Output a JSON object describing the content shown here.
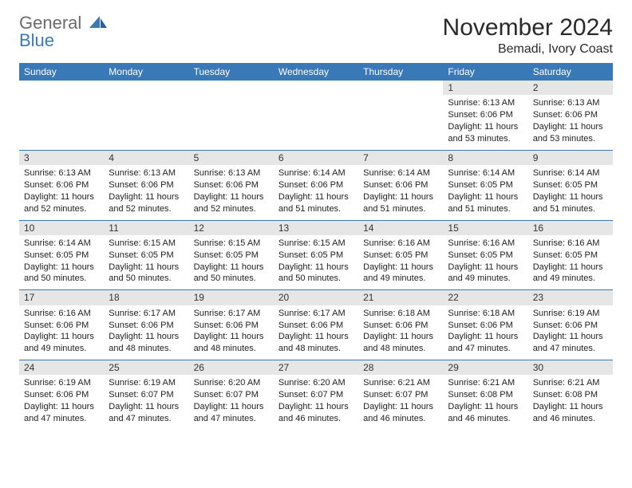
{
  "colors": {
    "header_bg": "#3a79b7",
    "header_text": "#ffffff",
    "daynum_bg": "#e6e6e6",
    "border": "#3a79b7",
    "logo_gray": "#6b6b6b",
    "logo_blue": "#3a79b7",
    "body_text": "#222222"
  },
  "logo": {
    "word1": "General",
    "word2": "Blue"
  },
  "title": "November 2024",
  "location": "Bemadi, Ivory Coast",
  "day_headers": [
    "Sunday",
    "Monday",
    "Tuesday",
    "Wednesday",
    "Thursday",
    "Friday",
    "Saturday"
  ],
  "weeks": [
    [
      null,
      null,
      null,
      null,
      null,
      {
        "n": "1",
        "sunrise": "Sunrise: 6:13 AM",
        "sunset": "Sunset: 6:06 PM",
        "daylight": "Daylight: 11 hours and 53 minutes."
      },
      {
        "n": "2",
        "sunrise": "Sunrise: 6:13 AM",
        "sunset": "Sunset: 6:06 PM",
        "daylight": "Daylight: 11 hours and 53 minutes."
      }
    ],
    [
      {
        "n": "3",
        "sunrise": "Sunrise: 6:13 AM",
        "sunset": "Sunset: 6:06 PM",
        "daylight": "Daylight: 11 hours and 52 minutes."
      },
      {
        "n": "4",
        "sunrise": "Sunrise: 6:13 AM",
        "sunset": "Sunset: 6:06 PM",
        "daylight": "Daylight: 11 hours and 52 minutes."
      },
      {
        "n": "5",
        "sunrise": "Sunrise: 6:13 AM",
        "sunset": "Sunset: 6:06 PM",
        "daylight": "Daylight: 11 hours and 52 minutes."
      },
      {
        "n": "6",
        "sunrise": "Sunrise: 6:14 AM",
        "sunset": "Sunset: 6:06 PM",
        "daylight": "Daylight: 11 hours and 51 minutes."
      },
      {
        "n": "7",
        "sunrise": "Sunrise: 6:14 AM",
        "sunset": "Sunset: 6:06 PM",
        "daylight": "Daylight: 11 hours and 51 minutes."
      },
      {
        "n": "8",
        "sunrise": "Sunrise: 6:14 AM",
        "sunset": "Sunset: 6:05 PM",
        "daylight": "Daylight: 11 hours and 51 minutes."
      },
      {
        "n": "9",
        "sunrise": "Sunrise: 6:14 AM",
        "sunset": "Sunset: 6:05 PM",
        "daylight": "Daylight: 11 hours and 51 minutes."
      }
    ],
    [
      {
        "n": "10",
        "sunrise": "Sunrise: 6:14 AM",
        "sunset": "Sunset: 6:05 PM",
        "daylight": "Daylight: 11 hours and 50 minutes."
      },
      {
        "n": "11",
        "sunrise": "Sunrise: 6:15 AM",
        "sunset": "Sunset: 6:05 PM",
        "daylight": "Daylight: 11 hours and 50 minutes."
      },
      {
        "n": "12",
        "sunrise": "Sunrise: 6:15 AM",
        "sunset": "Sunset: 6:05 PM",
        "daylight": "Daylight: 11 hours and 50 minutes."
      },
      {
        "n": "13",
        "sunrise": "Sunrise: 6:15 AM",
        "sunset": "Sunset: 6:05 PM",
        "daylight": "Daylight: 11 hours and 50 minutes."
      },
      {
        "n": "14",
        "sunrise": "Sunrise: 6:16 AM",
        "sunset": "Sunset: 6:05 PM",
        "daylight": "Daylight: 11 hours and 49 minutes."
      },
      {
        "n": "15",
        "sunrise": "Sunrise: 6:16 AM",
        "sunset": "Sunset: 6:05 PM",
        "daylight": "Daylight: 11 hours and 49 minutes."
      },
      {
        "n": "16",
        "sunrise": "Sunrise: 6:16 AM",
        "sunset": "Sunset: 6:05 PM",
        "daylight": "Daylight: 11 hours and 49 minutes."
      }
    ],
    [
      {
        "n": "17",
        "sunrise": "Sunrise: 6:16 AM",
        "sunset": "Sunset: 6:06 PM",
        "daylight": "Daylight: 11 hours and 49 minutes."
      },
      {
        "n": "18",
        "sunrise": "Sunrise: 6:17 AM",
        "sunset": "Sunset: 6:06 PM",
        "daylight": "Daylight: 11 hours and 48 minutes."
      },
      {
        "n": "19",
        "sunrise": "Sunrise: 6:17 AM",
        "sunset": "Sunset: 6:06 PM",
        "daylight": "Daylight: 11 hours and 48 minutes."
      },
      {
        "n": "20",
        "sunrise": "Sunrise: 6:17 AM",
        "sunset": "Sunset: 6:06 PM",
        "daylight": "Daylight: 11 hours and 48 minutes."
      },
      {
        "n": "21",
        "sunrise": "Sunrise: 6:18 AM",
        "sunset": "Sunset: 6:06 PM",
        "daylight": "Daylight: 11 hours and 48 minutes."
      },
      {
        "n": "22",
        "sunrise": "Sunrise: 6:18 AM",
        "sunset": "Sunset: 6:06 PM",
        "daylight": "Daylight: 11 hours and 47 minutes."
      },
      {
        "n": "23",
        "sunrise": "Sunrise: 6:19 AM",
        "sunset": "Sunset: 6:06 PM",
        "daylight": "Daylight: 11 hours and 47 minutes."
      }
    ],
    [
      {
        "n": "24",
        "sunrise": "Sunrise: 6:19 AM",
        "sunset": "Sunset: 6:06 PM",
        "daylight": "Daylight: 11 hours and 47 minutes."
      },
      {
        "n": "25",
        "sunrise": "Sunrise: 6:19 AM",
        "sunset": "Sunset: 6:07 PM",
        "daylight": "Daylight: 11 hours and 47 minutes."
      },
      {
        "n": "26",
        "sunrise": "Sunrise: 6:20 AM",
        "sunset": "Sunset: 6:07 PM",
        "daylight": "Daylight: 11 hours and 47 minutes."
      },
      {
        "n": "27",
        "sunrise": "Sunrise: 6:20 AM",
        "sunset": "Sunset: 6:07 PM",
        "daylight": "Daylight: 11 hours and 46 minutes."
      },
      {
        "n": "28",
        "sunrise": "Sunrise: 6:21 AM",
        "sunset": "Sunset: 6:07 PM",
        "daylight": "Daylight: 11 hours and 46 minutes."
      },
      {
        "n": "29",
        "sunrise": "Sunrise: 6:21 AM",
        "sunset": "Sunset: 6:08 PM",
        "daylight": "Daylight: 11 hours and 46 minutes."
      },
      {
        "n": "30",
        "sunrise": "Sunrise: 6:21 AM",
        "sunset": "Sunset: 6:08 PM",
        "daylight": "Daylight: 11 hours and 46 minutes."
      }
    ]
  ]
}
